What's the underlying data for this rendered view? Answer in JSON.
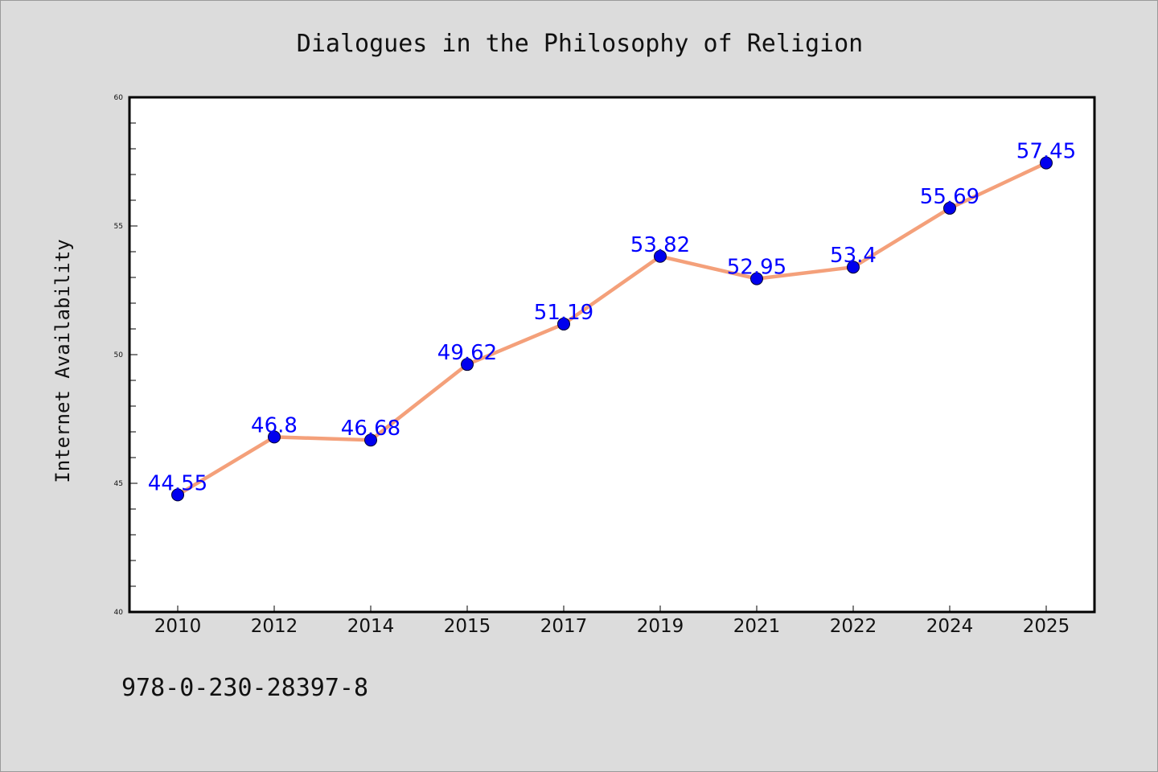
{
  "chart_data": {
    "type": "line",
    "title": "Dialogues in the Philosophy of Religion",
    "ylabel": "Internet Availability",
    "xlabel": "",
    "categories": [
      "2010",
      "2012",
      "2014",
      "2015",
      "2017",
      "2019",
      "2021",
      "2022",
      "2024",
      "2025"
    ],
    "values": [
      44.55,
      46.8,
      46.68,
      49.62,
      51.19,
      53.82,
      52.95,
      53.4,
      55.69,
      57.45
    ],
    "data_labels": [
      "44.55",
      "46.8",
      "46.68",
      "49.62",
      "51.19",
      "53.82",
      "52.95",
      "53.4",
      "55.69",
      "57.45"
    ],
    "ylim": [
      40,
      60
    ],
    "yticks": [
      40,
      45,
      50,
      55,
      60
    ],
    "grid": false,
    "legend": "none",
    "colors": {
      "line": "#f4a07a",
      "marker": "#0000ee",
      "label": "#0000ff",
      "background": "#dcdcdc",
      "plot_background": "#ffffff"
    }
  },
  "footer": {
    "isbn": "978-0-230-28397-8"
  }
}
